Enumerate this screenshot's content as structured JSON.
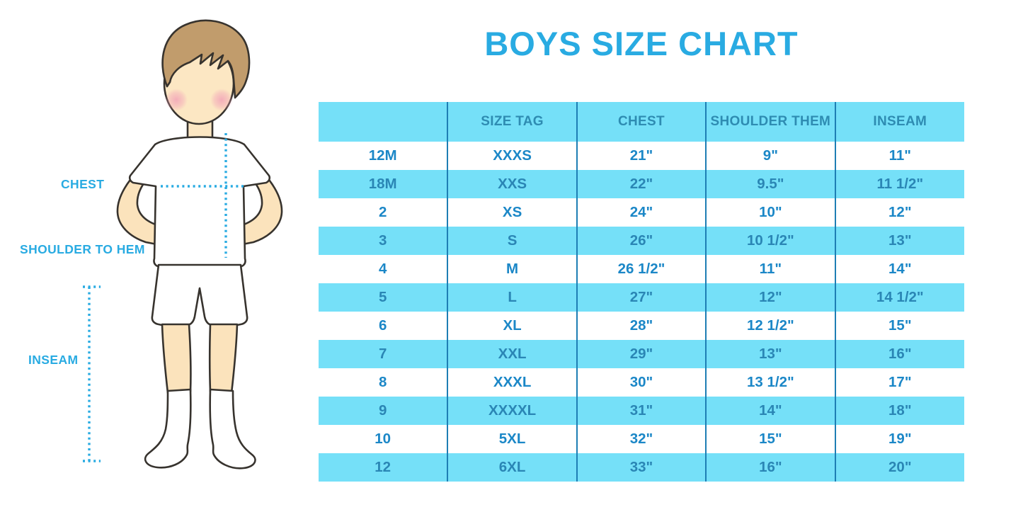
{
  "title": "BOYS SIZE CHART",
  "figure": {
    "chest_label": "CHEST",
    "shoulder_label": "SHOULDER TO HEM",
    "inseam_label": "INSEAM"
  },
  "colors": {
    "accent": "#29ABE2",
    "band": "#75E0F8",
    "header_text": "#2E8CB2",
    "cell_text": "#1B87C7",
    "band_text": "#2A86B5",
    "divider": "#1E7EB4"
  },
  "chart_data": {
    "type": "table",
    "title": "BOYS SIZE CHART",
    "columns": [
      "",
      "SIZE TAG",
      "CHEST",
      "SHOULDER THEM",
      "INSEAM"
    ],
    "rows": [
      [
        "12M",
        "XXXS",
        "21\"",
        "9\"",
        "11\""
      ],
      [
        "18M",
        "XXS",
        "22\"",
        "9.5\"",
        "11 1/2\""
      ],
      [
        "2",
        "XS",
        "24\"",
        "10\"",
        "12\""
      ],
      [
        "3",
        "S",
        "26\"",
        "10 1/2\"",
        "13\""
      ],
      [
        "4",
        "M",
        "26 1/2\"",
        "11\"",
        "14\""
      ],
      [
        "5",
        "L",
        "27\"",
        "12\"",
        "14 1/2\""
      ],
      [
        "6",
        "XL",
        "28\"",
        "12 1/2\"",
        "15\""
      ],
      [
        "7",
        "XXL",
        "29\"",
        "13\"",
        "16\""
      ],
      [
        "8",
        "XXXL",
        "30\"",
        "13 1/2\"",
        "17\""
      ],
      [
        "9",
        "XXXXL",
        "31\"",
        "14\"",
        "18\""
      ],
      [
        "10",
        "5XL",
        "32\"",
        "15\"",
        "19\""
      ],
      [
        "12",
        "6XL",
        "33\"",
        "16\"",
        "20\""
      ]
    ],
    "layout": {
      "banding": "alternate rows cyan starting at second data row",
      "grid": "vertical column dividers only"
    }
  }
}
